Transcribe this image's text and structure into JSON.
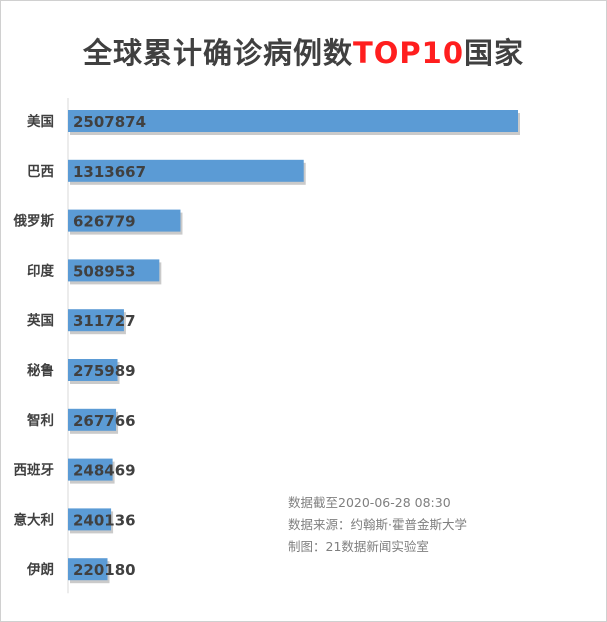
{
  "title": {
    "prefix": "全球累计确诊病例数",
    "accent": "TOP10",
    "suffix": "国家"
  },
  "colors": {
    "bar": "#5b9bd5",
    "bar_shadow": "#9e9e9e",
    "title_accent": "#ff1e1e",
    "title": "#404040",
    "label": "#404040",
    "source": "#7f7f7f"
  },
  "chart_data": {
    "type": "bar",
    "orientation": "horizontal",
    "categories": [
      "美国",
      "巴西",
      "俄罗斯",
      "印度",
      "英国",
      "秘鲁",
      "智利",
      "西班牙",
      "意大利",
      "伊朗"
    ],
    "values": [
      2507874,
      1313667,
      626779,
      508953,
      311727,
      275989,
      267766,
      248469,
      240136,
      220180
    ],
    "title": "全球累计确诊病例数TOP10国家",
    "xlabel": "",
    "ylabel": "",
    "xlim": [
      0,
      2507874
    ],
    "grid": false,
    "legend": "none",
    "data_labels": true
  },
  "source_note": {
    "line1": "数据截至2020-06-28 08:30",
    "line2": "数据来源：约翰斯·霍普金斯大学",
    "line3": "制图：21数据新闻实验室"
  }
}
